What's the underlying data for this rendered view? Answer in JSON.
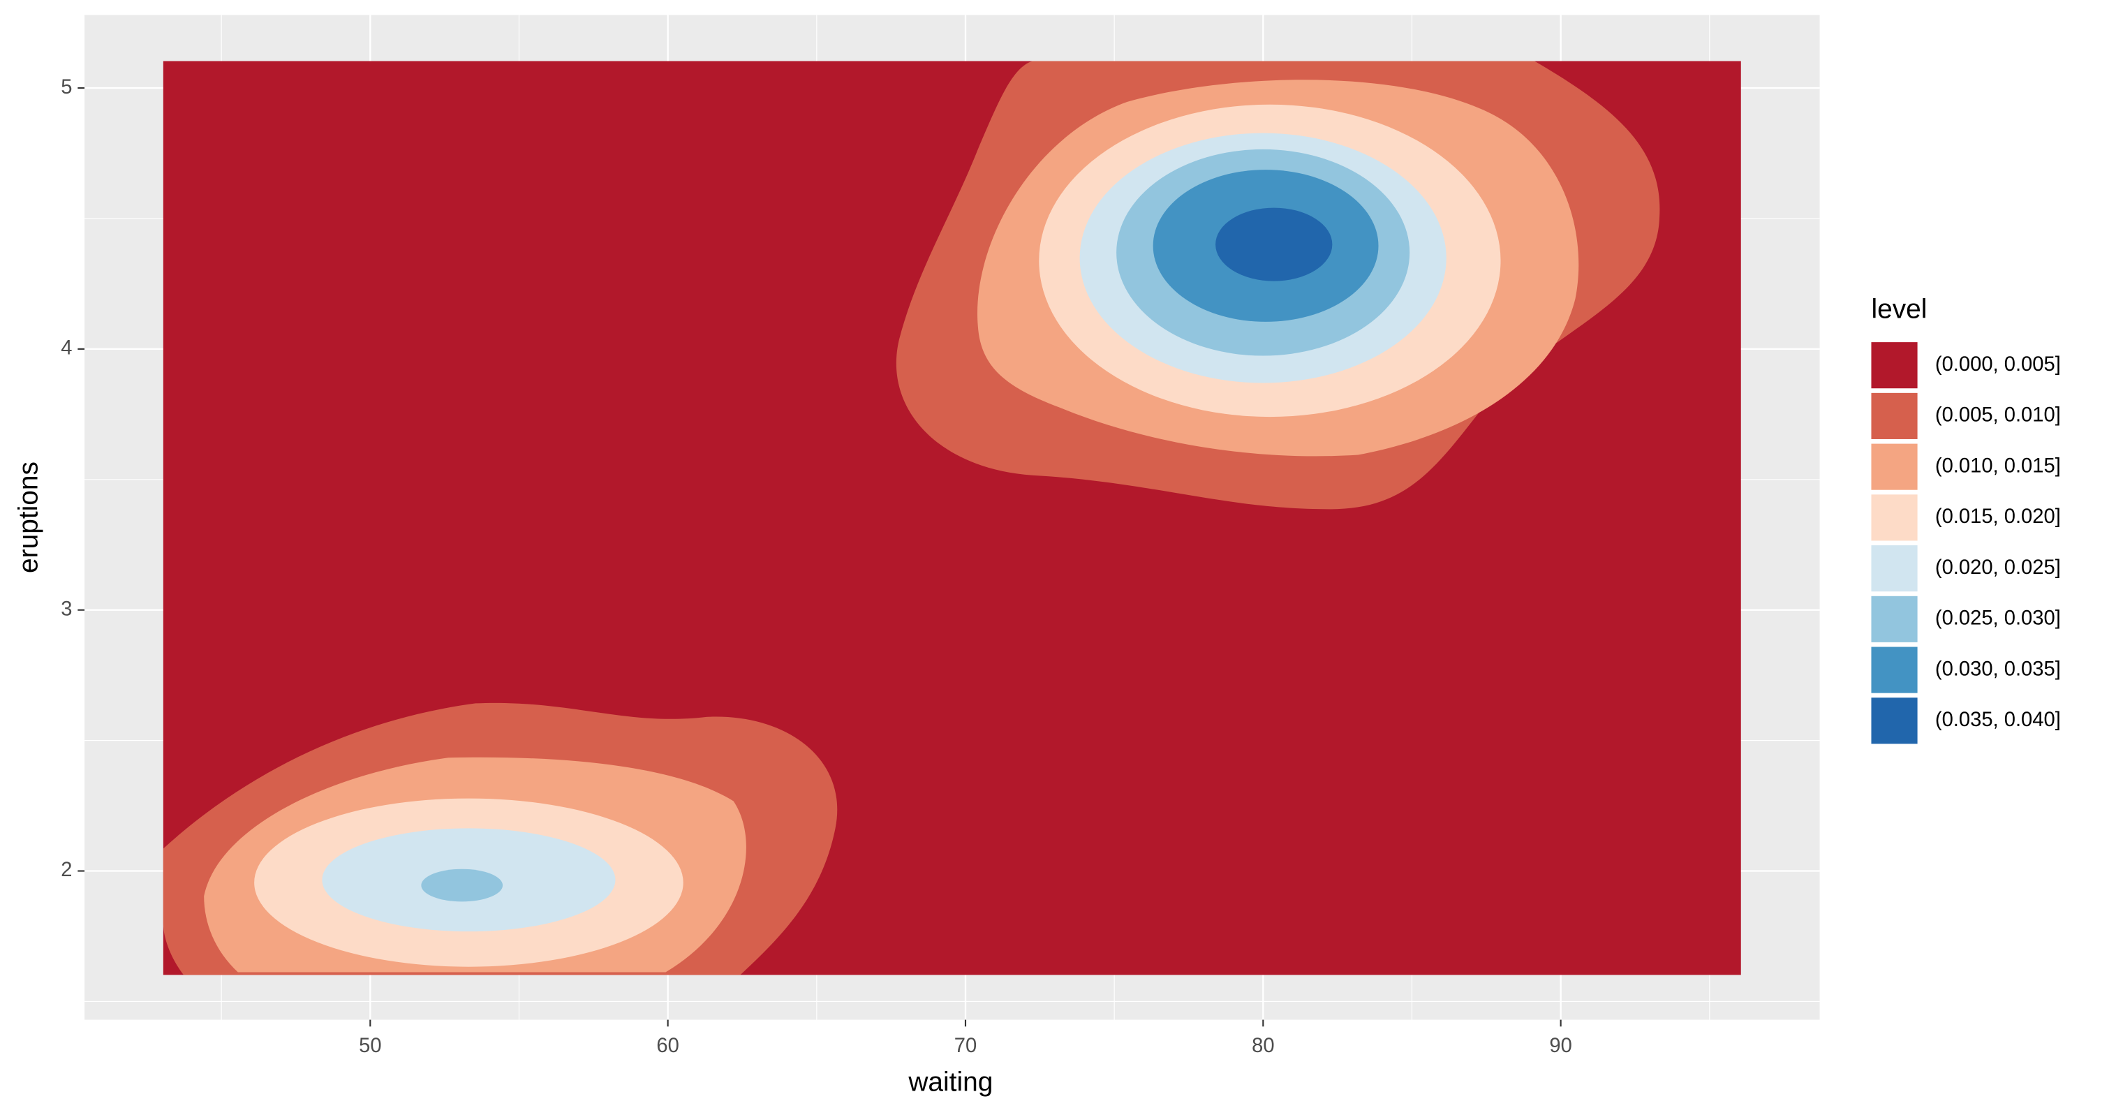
{
  "chart_data": {
    "type": "contour",
    "x_label": "waiting",
    "y_label": "eruptions",
    "xlim": [
      40.4,
      98.7
    ],
    "ylim": [
      1.43,
      5.28
    ],
    "xticks": [
      50,
      60,
      70,
      80,
      90
    ],
    "yticks": [
      2,
      3,
      4,
      5
    ],
    "xminor": [
      45,
      55,
      65,
      75,
      85,
      95
    ],
    "yminor": [
      1.5,
      2.5,
      3.5,
      4.5
    ],
    "grid": true,
    "legend_title": "level",
    "legend_position": "right",
    "series": [
      {
        "name": "(0.000, 0.005]",
        "color": "#B2182B"
      },
      {
        "name": "(0.005, 0.010]",
        "color": "#D6604D"
      },
      {
        "name": "(0.010, 0.015]",
        "color": "#F4A582"
      },
      {
        "name": "(0.015, 0.020]",
        "color": "#FDDBC7"
      },
      {
        "name": "(0.020, 0.025]",
        "color": "#D1E5F0"
      },
      {
        "name": "(0.025, 0.030]",
        "color": "#92C5DE"
      },
      {
        "name": "(0.030, 0.035]",
        "color": "#4393C3"
      },
      {
        "name": "(0.035, 0.040]",
        "color": "#2166AC"
      }
    ]
  }
}
